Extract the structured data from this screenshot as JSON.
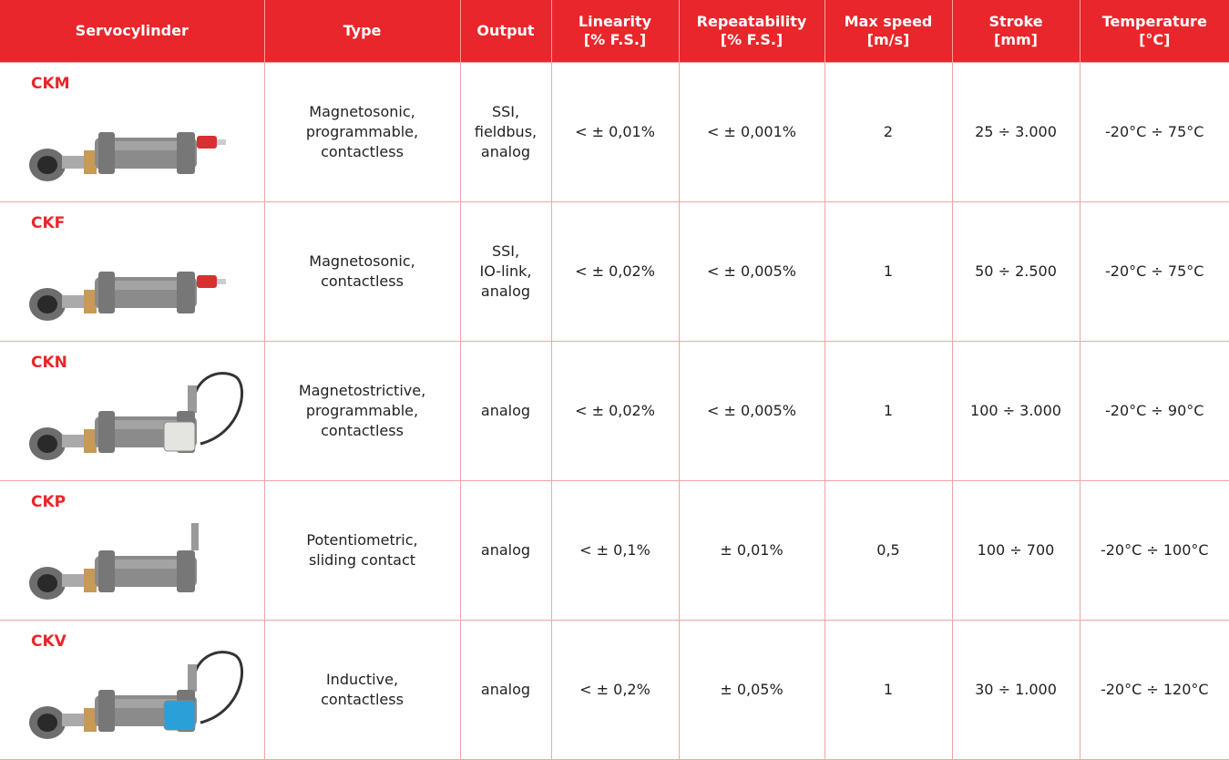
{
  "table": {
    "header": [
      [
        "Servocylinder"
      ],
      [
        "Type"
      ],
      [
        "Output"
      ],
      [
        "Linearity",
        "[% F.S.]"
      ],
      [
        "Repeatability",
        "[% F.S.]"
      ],
      [
        "Max speed",
        "[m/s]"
      ],
      [
        "Stroke",
        "[mm]"
      ],
      [
        "Temperature",
        "[°C]"
      ]
    ],
    "rows": [
      [
        "CKM",
        [
          "Magnetosonic,",
          "programmable,",
          "contactless"
        ],
        [
          "SSI,",
          "fieldbus,",
          "analog"
        ],
        [
          "< ± 0,01%"
        ],
        [
          "< ± 0,001%"
        ],
        [
          "2"
        ],
        [
          "25 ÷ 3.000"
        ],
        [
          "-20°C ÷ 75°C"
        ]
      ],
      [
        "CKF",
        [
          "Magnetosonic,",
          "contactless"
        ],
        [
          "SSI,",
          "IO-link,",
          "analog"
        ],
        [
          "< ± 0,02%"
        ],
        [
          "< ± 0,005%"
        ],
        [
          "1"
        ],
        [
          "50 ÷ 2.500"
        ],
        [
          "-20°C ÷ 75°C"
        ]
      ],
      [
        "CKN",
        [
          "Magnetostrictive,",
          "programmable,",
          "contactless"
        ],
        [
          "analog"
        ],
        [
          "< ± 0,02%"
        ],
        [
          "< ± 0,005%"
        ],
        [
          "1"
        ],
        [
          "100 ÷ 3.000"
        ],
        [
          "-20°C ÷ 90°C"
        ]
      ],
      [
        "CKP",
        [
          "Potentiometric,",
          "sliding contact"
        ],
        [
          "analog"
        ],
        [
          "< ± 0,1%"
        ],
        [
          "± 0,01%"
        ],
        [
          "0,5"
        ],
        [
          "100 ÷ 700"
        ],
        [
          "-20°C ÷ 100°C"
        ]
      ],
      [
        "CKV",
        [
          "Inductive,",
          "contactless"
        ],
        [
          "analog"
        ],
        [
          "< ± 0,2%"
        ],
        [
          "± 0,05%"
        ],
        [
          "1"
        ],
        [
          "30 ÷ 1.000"
        ],
        [
          "-20°C ÷ 120°C"
        ]
      ]
    ]
  }
}
